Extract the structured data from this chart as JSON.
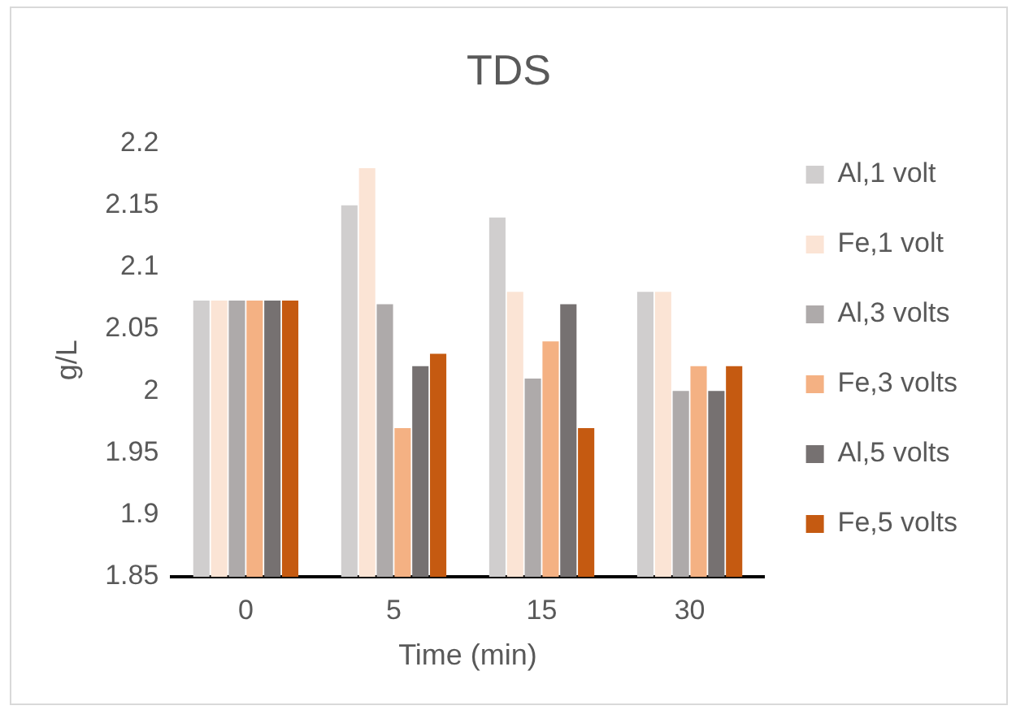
{
  "chart_data": {
    "type": "bar",
    "title": "TDS",
    "xlabel": "Time (min)",
    "ylabel": "g/L",
    "categories": [
      "0",
      "5",
      "15",
      "30"
    ],
    "series": [
      {
        "name": "Al,1 volt",
        "color": "#d0cece",
        "values": [
          2.073,
          2.15,
          2.14,
          2.08
        ]
      },
      {
        "name": "Fe,1 volt",
        "color": "#fbe4d5",
        "values": [
          2.073,
          2.18,
          2.08,
          2.08
        ]
      },
      {
        "name": "Al,3 volts",
        "color": "#aeaaaa",
        "values": [
          2.073,
          2.07,
          2.01,
          2.0
        ]
      },
      {
        "name": "Fe,3 volts",
        "color": "#f4b183",
        "values": [
          2.073,
          1.97,
          2.04,
          2.02
        ]
      },
      {
        "name": "Al,5 volts",
        "color": "#767171",
        "values": [
          2.073,
          2.02,
          2.07,
          2.0
        ]
      },
      {
        "name": "Fe,5 volts",
        "color": "#c55a11",
        "values": [
          2.073,
          2.03,
          1.97,
          2.02
        ]
      }
    ],
    "ylim": [
      1.85,
      2.2
    ],
    "yticks": [
      1.85,
      1.9,
      1.95,
      2,
      2.05,
      2.1,
      2.15,
      2.2
    ],
    "grid": false,
    "legend": "right"
  }
}
